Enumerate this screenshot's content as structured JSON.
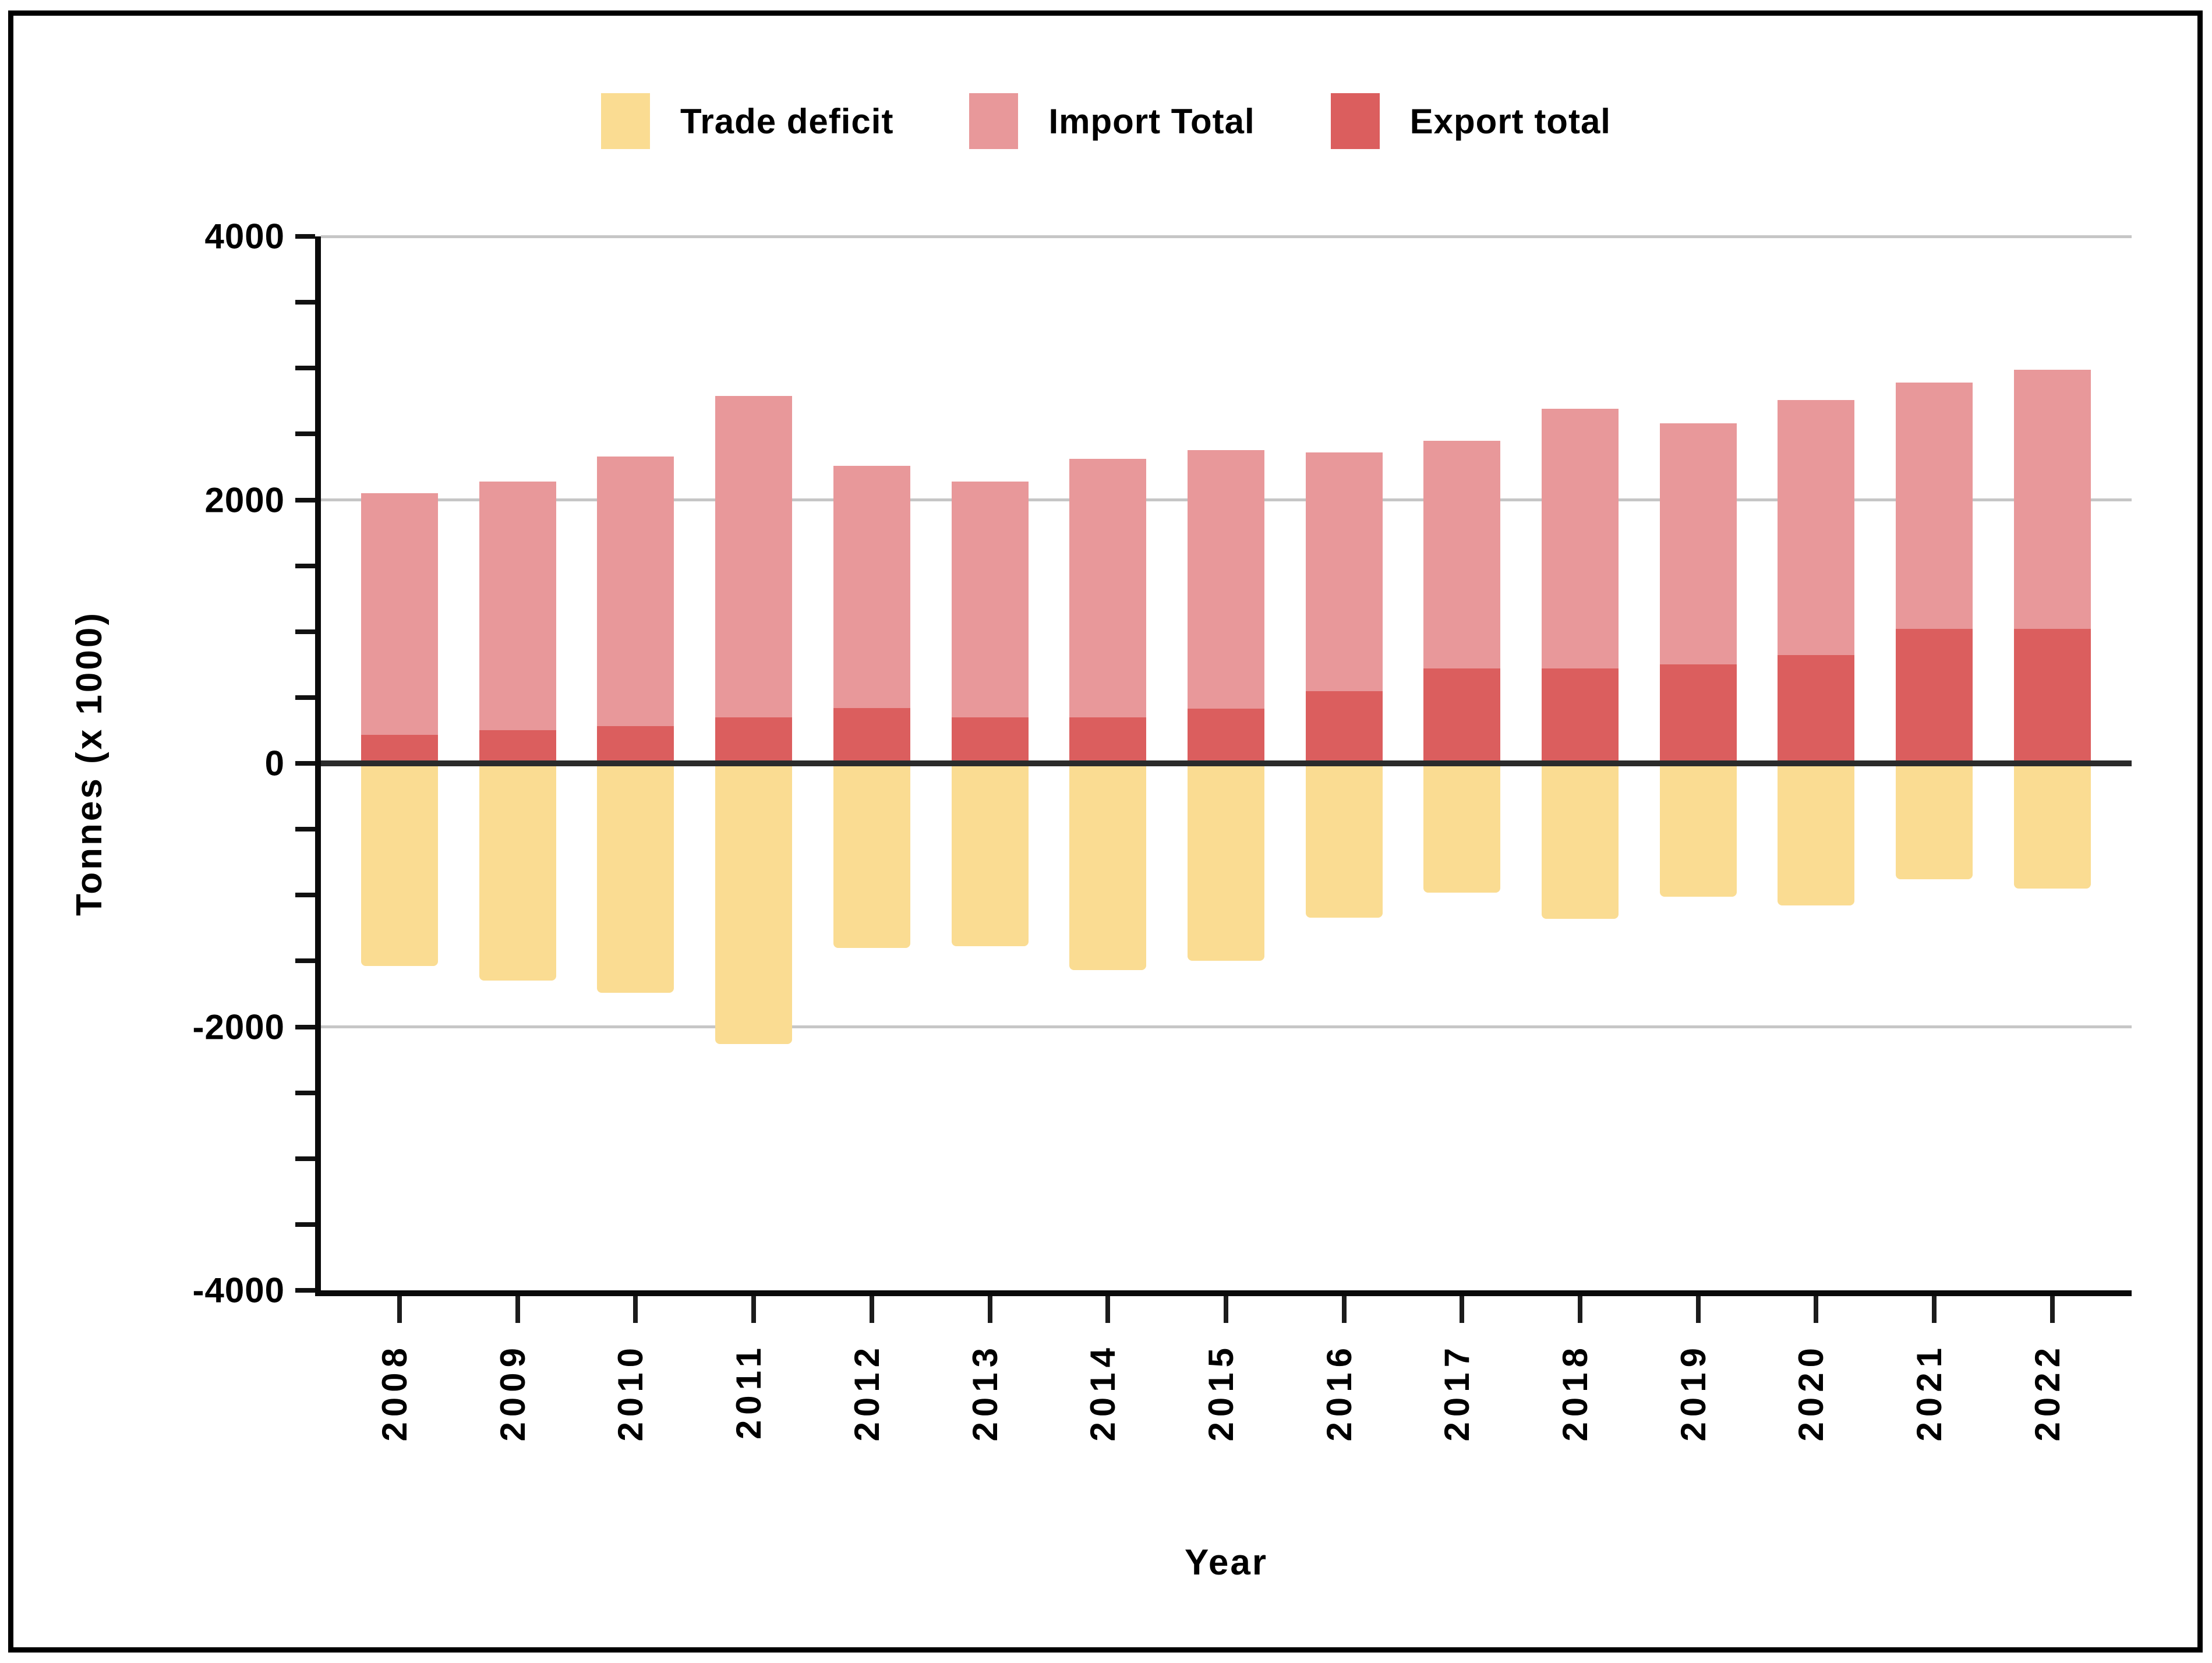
{
  "figure": {
    "background": "#ffffff",
    "border_color": "#000000"
  },
  "legend": {
    "items": [
      {
        "label": "Trade deficit",
        "color": "#fadc92"
      },
      {
        "label": "Import Total",
        "color": "#e8989a"
      },
      {
        "label": "Export total",
        "color": "#db5e5e"
      }
    ]
  },
  "chart_data": {
    "type": "bar",
    "stacked": true,
    "title": "",
    "xlabel": "Year",
    "ylabel": "Tonnes (x 1000)",
    "ylim": [
      -4000,
      4000
    ],
    "y_major_ticks": [
      4000,
      2000,
      0,
      -2000,
      -4000
    ],
    "y_minor_step": 500,
    "grid": "horizontal-major-gray, zero-line-black",
    "legend_position": "top-center",
    "x_tick_label_rotation": -90,
    "categories": [
      "2008",
      "2009",
      "2010",
      "2011",
      "2012",
      "2013",
      "2014",
      "2015",
      "2016",
      "2017",
      "2018",
      "2019",
      "2020",
      "2021",
      "2022"
    ],
    "series": [
      {
        "name": "Trade deficit",
        "color": "#fadc92",
        "role": "negative bars below zero",
        "values": [
          -1540,
          -1650,
          -1740,
          -2130,
          -1400,
          -1390,
          -1570,
          -1500,
          -1170,
          -980,
          -1180,
          -1010,
          -1080,
          -880,
          -950
        ]
      },
      {
        "name": "Import Total",
        "color": "#e8989a",
        "role": "stacked on top of Export total",
        "values": [
          1835,
          1890,
          2045,
          2440,
          1840,
          1790,
          1960,
          1965,
          1810,
          1730,
          1970,
          1830,
          1940,
          1870,
          1970
        ]
      },
      {
        "name": "Export total",
        "color": "#db5e5e",
        "role": "stacked from zero up",
        "values": [
          215,
          250,
          285,
          350,
          420,
          350,
          350,
          415,
          550,
          720,
          720,
          750,
          820,
          1020,
          1020
        ]
      }
    ],
    "stack_top_values_import_plus_export": [
      2050,
      2140,
      2330,
      2790,
      2260,
      2140,
      2310,
      2380,
      2360,
      2450,
      2690,
      2580,
      2760,
      2890,
      2990
    ]
  }
}
